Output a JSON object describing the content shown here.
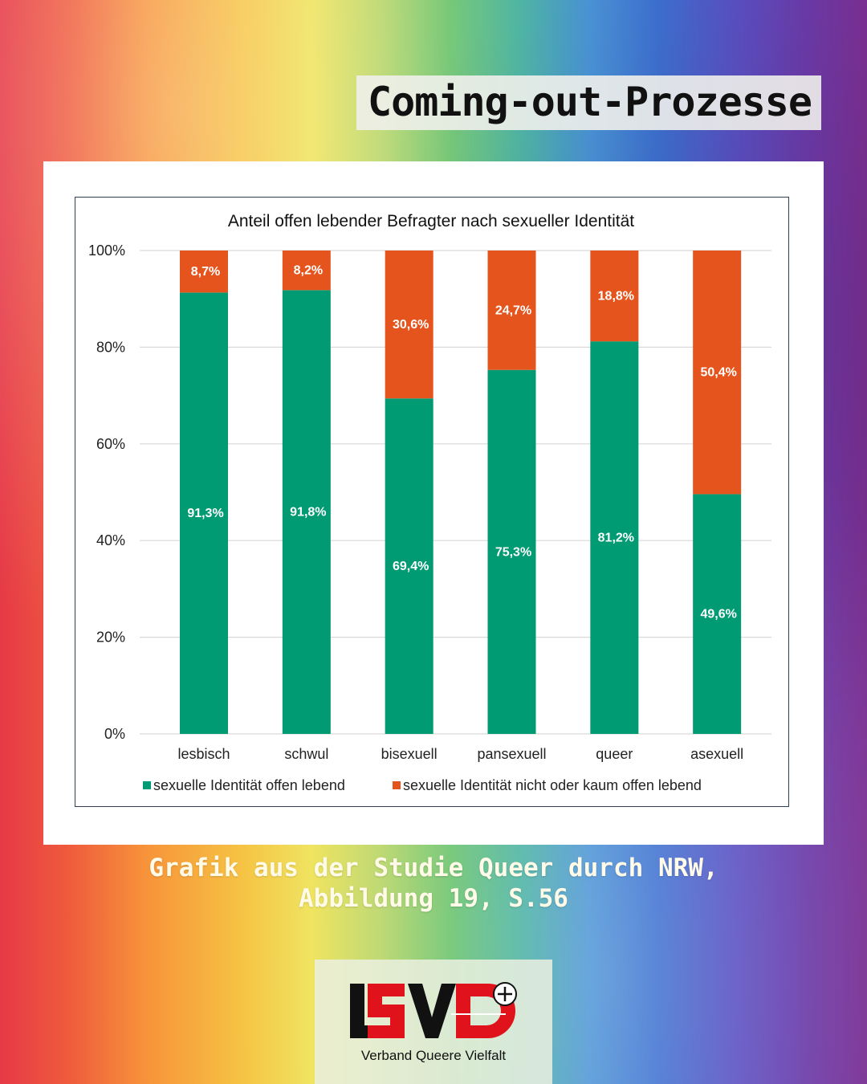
{
  "header": {
    "title": "Coming-out-Prozesse"
  },
  "caption": {
    "line1": "Grafik aus der Studie Queer durch NRW,",
    "line2": "Abbildung 19, S.56"
  },
  "logo": {
    "text": "Verband Queere Vielfalt",
    "mark": "LSVD+"
  },
  "colors": {
    "open": "#009a73",
    "not_open": "#e6541d",
    "grid": "#d9d9d9"
  },
  "chart_data": {
    "type": "bar",
    "stacked": true,
    "title": "Anteil offen lebender Befragter nach sexueller Identität",
    "categories": [
      "lesbisch",
      "schwul",
      "bisexuell",
      "pansexuell",
      "queer",
      "asexuell"
    ],
    "series": [
      {
        "name": "sexuelle Identität offen lebend",
        "values": [
          91.3,
          91.8,
          69.4,
          75.3,
          81.2,
          49.6
        ],
        "labels": [
          "91,3%",
          "91,8%",
          "69,4%",
          "75,3%",
          "81,2%",
          "49,6%"
        ]
      },
      {
        "name": "sexuelle Identität nicht oder kaum offen lebend",
        "values": [
          8.7,
          8.2,
          30.6,
          24.7,
          18.8,
          50.4
        ],
        "labels": [
          "8,7%",
          "8,2%",
          "30,6%",
          "24,7%",
          "18,8%",
          "50,4%"
        ]
      }
    ],
    "ylim": [
      0,
      100
    ],
    "yticks": [
      "0%",
      "20%",
      "40%",
      "60%",
      "80%",
      "100%"
    ],
    "grid": true,
    "legend": "bottom"
  }
}
